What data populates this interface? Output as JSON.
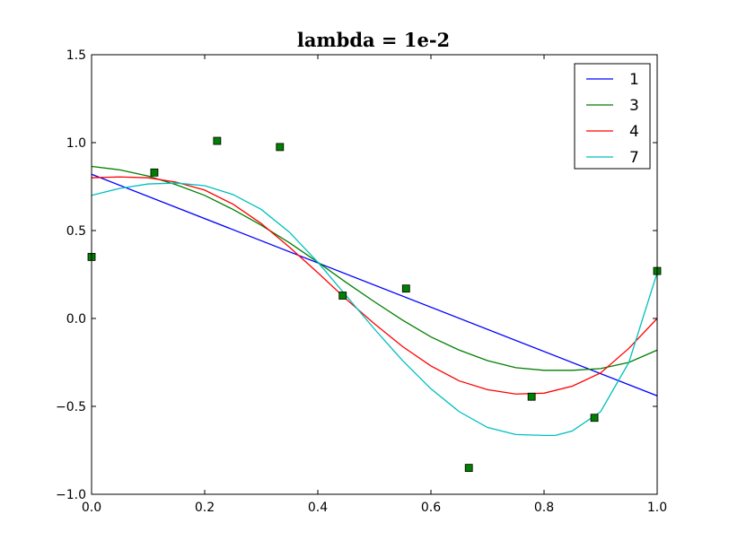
{
  "chart_data": {
    "type": "line",
    "title": "lambda = 1e-2",
    "xlabel": "",
    "ylabel": "",
    "xlim": [
      0.0,
      1.0
    ],
    "ylim": [
      -1.0,
      1.5
    ],
    "xticks": [
      "0.0",
      "0.2",
      "0.4",
      "0.6",
      "0.8",
      "1.0"
    ],
    "xtick_values": [
      0.0,
      0.2,
      0.4,
      0.6,
      0.8,
      1.0
    ],
    "yticks": [
      "1.5",
      "1.0",
      "0.5",
      "0.0",
      "−0.5",
      "−1.0"
    ],
    "ytick_values": [
      1.5,
      1.0,
      0.5,
      0.0,
      -0.5,
      -1.0
    ],
    "grid": false,
    "legend_position": "top-right",
    "scatter_points": {
      "marker": "square",
      "color": "#007f00",
      "x": [
        0.0,
        0.111,
        0.222,
        0.333,
        0.444,
        0.556,
        0.667,
        0.778,
        0.889,
        1.0
      ],
      "y": [
        0.35,
        0.83,
        1.01,
        0.975,
        0.13,
        0.17,
        -0.85,
        -0.445,
        -0.565,
        0.27
      ]
    },
    "series": [
      {
        "name": "1",
        "color": "#0000ff",
        "x": [
          0.0,
          1.0
        ],
        "y": [
          0.82,
          -0.44
        ]
      },
      {
        "name": "3",
        "color": "#007f00",
        "x": [
          0.0,
          0.05,
          0.1,
          0.15,
          0.2,
          0.25,
          0.3,
          0.35,
          0.4,
          0.45,
          0.5,
          0.55,
          0.6,
          0.65,
          0.7,
          0.75,
          0.8,
          0.85,
          0.9,
          0.95,
          1.0
        ],
        "y": [
          0.865,
          0.845,
          0.81,
          0.76,
          0.7,
          0.62,
          0.53,
          0.43,
          0.32,
          0.205,
          0.095,
          -0.01,
          -0.105,
          -0.18,
          -0.24,
          -0.28,
          -0.295,
          -0.295,
          -0.285,
          -0.25,
          -0.18
        ]
      },
      {
        "name": "4",
        "color": "#ff0000",
        "x": [
          0.0,
          0.05,
          0.1,
          0.15,
          0.2,
          0.25,
          0.3,
          0.35,
          0.4,
          0.45,
          0.5,
          0.55,
          0.6,
          0.65,
          0.7,
          0.75,
          0.8,
          0.85,
          0.9,
          0.95,
          1.0
        ],
        "y": [
          0.8,
          0.805,
          0.8,
          0.775,
          0.73,
          0.65,
          0.54,
          0.405,
          0.26,
          0.11,
          -0.03,
          -0.16,
          -0.27,
          -0.355,
          -0.405,
          -0.43,
          -0.425,
          -0.385,
          -0.31,
          -0.17,
          0.0
        ]
      },
      {
        "name": "7",
        "color": "#00bfbf",
        "x": [
          0.0,
          0.05,
          0.1,
          0.15,
          0.2,
          0.25,
          0.3,
          0.35,
          0.4,
          0.45,
          0.5,
          0.55,
          0.6,
          0.65,
          0.7,
          0.75,
          0.8,
          0.82,
          0.85,
          0.9,
          0.95,
          1.0
        ],
        "y": [
          0.7,
          0.74,
          0.765,
          0.77,
          0.755,
          0.705,
          0.62,
          0.49,
          0.32,
          0.13,
          -0.06,
          -0.24,
          -0.4,
          -0.53,
          -0.62,
          -0.66,
          -0.665,
          -0.665,
          -0.64,
          -0.53,
          -0.25,
          0.26
        ]
      }
    ]
  }
}
